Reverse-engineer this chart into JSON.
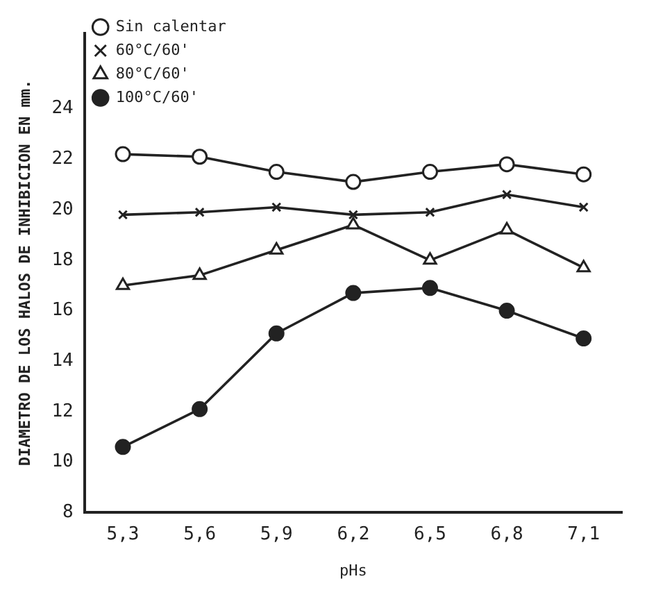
{
  "chart_data": {
    "type": "line",
    "xlabel": "pHs",
    "ylabel": "DIAMETRO DE LOS HALOS DE INHIBICION EN mm.",
    "categories": [
      "5,3",
      "5,6",
      "5,9",
      "6,2",
      "6,5",
      "6,8",
      "7,1"
    ],
    "series": [
      {
        "name": "Sin calentar",
        "color": "#222222",
        "marker": "circle",
        "values": [
          22.2,
          22.1,
          21.5,
          21.1,
          21.5,
          21.8,
          21.4
        ]
      },
      {
        "name": "60°C/60'",
        "color": "#222222",
        "marker": "cross",
        "values": [
          19.8,
          19.9,
          20.1,
          19.8,
          19.9,
          20.6,
          20.1
        ]
      },
      {
        "name": "80°C/60'",
        "color": "#222222",
        "marker": "triangle",
        "values": [
          17.0,
          17.4,
          18.4,
          19.4,
          18.0,
          19.2,
          17.7
        ]
      },
      {
        "name": "100°C/60'",
        "color": "#222222",
        "marker": "circle",
        "values": [
          10.6,
          12.1,
          15.1,
          16.7,
          16.9,
          16.0,
          14.9
        ]
      }
    ],
    "ylim": [
      8,
      27
    ],
    "yticks": [
      8,
      10,
      12,
      14,
      16,
      18,
      20,
      22,
      24
    ],
    "grid": false,
    "legend": "top left",
    "line_style": "solid"
  }
}
